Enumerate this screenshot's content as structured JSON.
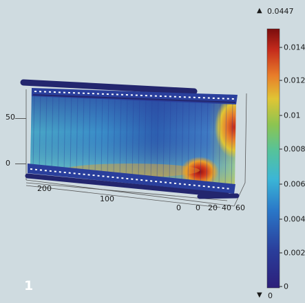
{
  "panel_number": "1",
  "colorbar": {
    "max_label": "0.0447",
    "min_label": "0",
    "max_arrow": "▲",
    "min_arrow": "▼",
    "ticks": [
      "0.014",
      "0.012",
      "0.01",
      "0.008",
      "0.006",
      "0.004",
      "0.002",
      "0"
    ],
    "colormap": [
      "#2c1f7a",
      "#2a3f9c",
      "#2a78c8",
      "#3bb6d6",
      "#56c39a",
      "#8cc451",
      "#e0c534",
      "#e87d2a",
      "#c42a1c",
      "#7a0d0d"
    ]
  },
  "axes": {
    "z_ticks": [
      "50",
      "0"
    ],
    "y_ticks": [
      "200",
      "100",
      "0"
    ],
    "x_ticks": [
      "0",
      "20",
      "40",
      "60"
    ]
  }
}
